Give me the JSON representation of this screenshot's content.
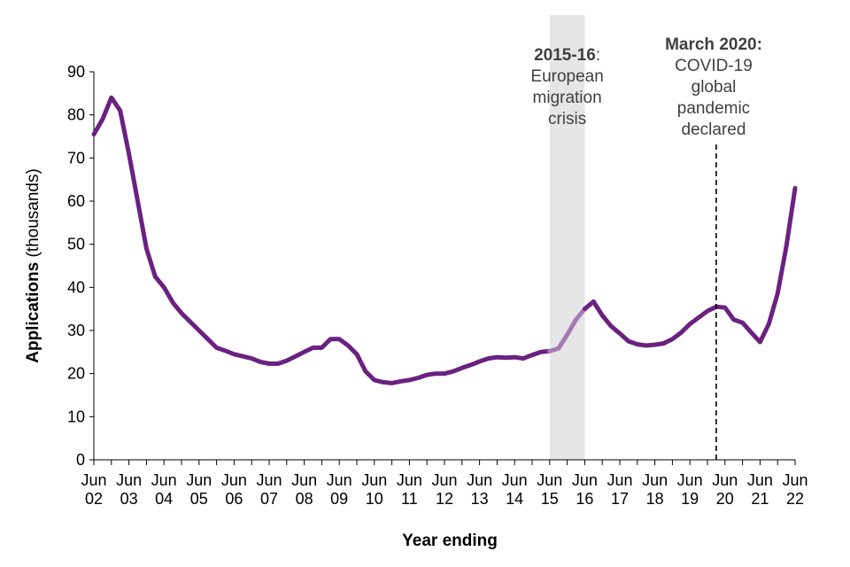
{
  "chart_data": {
    "type": "line",
    "title": "",
    "xlabel": "Year ending",
    "ylabel_bold": "Applications",
    "ylabel_rest": " (thousands)",
    "ylim": [
      0,
      90
    ],
    "yticks": [
      0,
      10,
      20,
      30,
      40,
      50,
      60,
      70,
      80,
      90
    ],
    "xticks": [
      {
        "month": "Jun",
        "year": "02",
        "x": 2002.5
      },
      {
        "month": "Jun",
        "year": "03",
        "x": 2003.5
      },
      {
        "month": "Jun",
        "year": "04",
        "x": 2004.5
      },
      {
        "month": "Jun",
        "year": "05",
        "x": 2005.5
      },
      {
        "month": "Jun",
        "year": "06",
        "x": 2006.5
      },
      {
        "month": "Jun",
        "year": "07",
        "x": 2007.5
      },
      {
        "month": "Jun",
        "year": "08",
        "x": 2008.5
      },
      {
        "month": "Jun",
        "year": "09",
        "x": 2009.5
      },
      {
        "month": "Jun",
        "year": "10",
        "x": 2010.5
      },
      {
        "month": "Jun",
        "year": "11",
        "x": 2011.5
      },
      {
        "month": "Jun",
        "year": "12",
        "x": 2012.5
      },
      {
        "month": "Jun",
        "year": "13",
        "x": 2013.5
      },
      {
        "month": "Jun",
        "year": "14",
        "x": 2014.5
      },
      {
        "month": "Jun",
        "year": "15",
        "x": 2015.5
      },
      {
        "month": "Jun",
        "year": "16",
        "x": 2016.5
      },
      {
        "month": "Jun",
        "year": "17",
        "x": 2017.5
      },
      {
        "month": "Jun",
        "year": "18",
        "x": 2018.5
      },
      {
        "month": "Jun",
        "year": "19",
        "x": 2019.5
      },
      {
        "month": "Jun",
        "year": "20",
        "x": 2020.5
      },
      {
        "month": "Jun",
        "year": "21",
        "x": 2021.5
      },
      {
        "month": "Jun",
        "year": "22",
        "x": 2022.5
      }
    ],
    "xlim": [
      2002.5,
      2022.5
    ],
    "series": [
      {
        "color": "#6a2181",
        "highlight_color": "#a67bb5",
        "x": [
          2002.5,
          2002.75,
          2003.0,
          2003.25,
          2003.5,
          2003.75,
          2004.0,
          2004.25,
          2004.5,
          2004.75,
          2005.0,
          2005.25,
          2005.5,
          2005.75,
          2006.0,
          2006.25,
          2006.5,
          2006.75,
          2007.0,
          2007.25,
          2007.5,
          2007.75,
          2008.0,
          2008.25,
          2008.5,
          2008.75,
          2009.0,
          2009.25,
          2009.5,
          2009.75,
          2010.0,
          2010.25,
          2010.5,
          2010.75,
          2011.0,
          2011.25,
          2011.5,
          2011.75,
          2012.0,
          2012.25,
          2012.5,
          2012.75,
          2013.0,
          2013.25,
          2013.5,
          2013.75,
          2014.0,
          2014.25,
          2014.5,
          2014.75,
          2015.0,
          2015.25,
          2015.5,
          2015.75,
          2016.0,
          2016.25,
          2016.5,
          2016.75,
          2017.0,
          2017.25,
          2017.5,
          2017.75,
          2018.0,
          2018.25,
          2018.5,
          2018.75,
          2019.0,
          2019.25,
          2019.5,
          2019.75,
          2020.0,
          2020.25,
          2020.5,
          2020.75,
          2021.0,
          2021.25,
          2021.5,
          2021.75,
          2022.0,
          2022.25,
          2022.5
        ],
        "y": [
          75.5,
          79,
          84,
          81,
          71,
          60,
          49,
          42.5,
          40,
          36.5,
          34,
          32,
          30,
          28,
          26,
          25.3,
          24.5,
          24,
          23.5,
          22.7,
          22.3,
          22.3,
          23,
          24,
          25,
          26,
          26,
          28,
          28,
          26.5,
          24.5,
          20.5,
          18.5,
          18,
          17.8,
          18.2,
          18.5,
          19,
          19.7,
          20,
          20,
          20.5,
          21.3,
          22,
          22.8,
          23.5,
          23.8,
          23.7,
          23.8,
          23.5,
          24.3,
          25,
          25.2,
          25.8,
          29,
          32.5,
          35,
          36.7,
          33.5,
          31,
          29.3,
          27.5,
          26.8,
          26.5,
          26.7,
          27,
          28,
          29.5,
          31.5,
          33,
          34.5,
          35.5,
          35.3,
          32.5,
          31.8,
          29.5,
          27.3,
          31.5,
          38.5,
          49.5,
          63
        ]
      }
    ],
    "highlight_band": {
      "x_start": 2015.5,
      "x_end": 2016.5,
      "color": "#e6e6e6"
    },
    "vline": {
      "x": 2020.25,
      "style": "dashed"
    },
    "annotations": [
      {
        "id": "migration",
        "bold": "2015-16",
        "rest": ":",
        "lines": [
          "European",
          "migration",
          "crisis"
        ]
      },
      {
        "id": "covid",
        "bold": "March 2020:",
        "rest": "",
        "lines": [
          "COVID-19",
          "global",
          "pandemic",
          "declared"
        ]
      }
    ]
  }
}
